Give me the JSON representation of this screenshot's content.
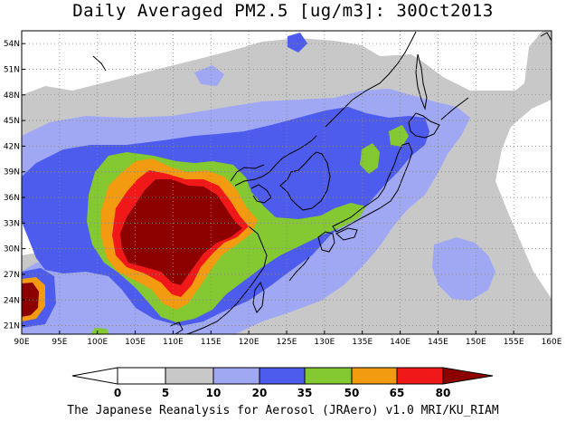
{
  "title": "Daily Averaged PM2.5 [ug/m3]: 30Oct2013",
  "credit": "The Japanese Reanalysis for Aerosol (JRAero) v1.0 MRI/KU_RIAM",
  "map": {
    "lon_ticks": [
      "90E",
      "95E",
      "100E",
      "105E",
      "110E",
      "115E",
      "120E",
      "125E",
      "130E",
      "135E",
      "140E",
      "145E",
      "150E",
      "155E",
      "160E"
    ],
    "lat_ticks": [
      "54N",
      "51N",
      "48N",
      "45N",
      "42N",
      "39N",
      "36N",
      "33N",
      "30N",
      "27N",
      "24N",
      "21N"
    ],
    "lon_range": [
      90,
      160
    ],
    "lat_range": [
      20,
      55.5
    ],
    "grid": "dotted"
  },
  "colorbar": {
    "labels": [
      "0",
      "5",
      "10",
      "20",
      "35",
      "50",
      "65",
      "80"
    ],
    "colors": [
      "#ffffff",
      "#ffffff",
      "#c8c8c8",
      "#a0a8f4",
      "#4d5cec",
      "#84c832",
      "#f29b10",
      "#f01818",
      "#8c0000"
    ]
  },
  "palette": {
    "c5_10": "#c8c8c8",
    "c10_20": "#a0a8f4",
    "c20_35": "#4d5cec",
    "c35_50": "#84c832",
    "c50_65": "#f29b10",
    "c65_80": "#f01818",
    "c80": "#8c0000"
  }
}
